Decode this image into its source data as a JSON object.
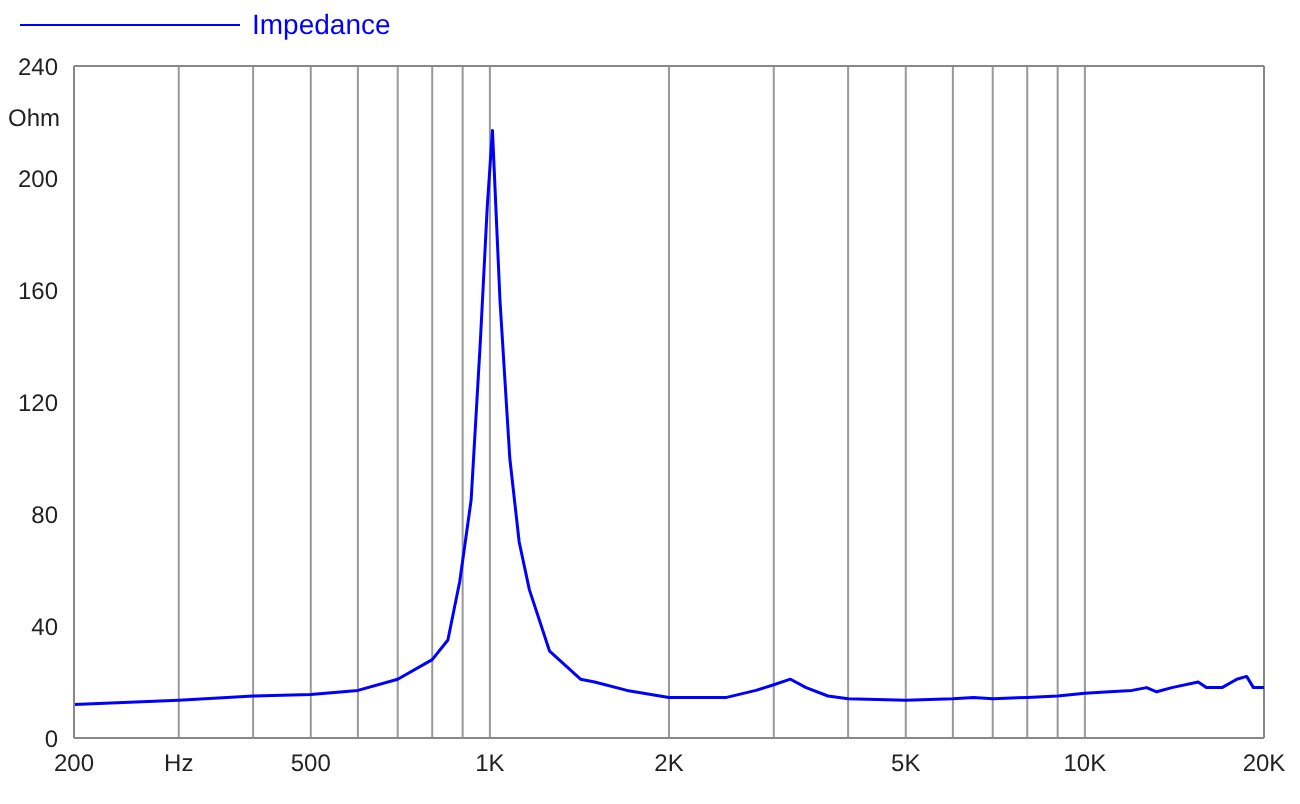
{
  "chart_data": {
    "type": "line",
    "ylabel": "Ohm",
    "legend": "top left",
    "grid": "x",
    "marker": "none",
    "line_style": "solid",
    "log": "x",
    "xlim": [
      200,
      20000
    ],
    "ylim": [
      0,
      240
    ],
    "yticks": [
      0,
      40,
      80,
      120,
      160,
      200,
      240
    ],
    "xticks": [
      200,
      {
        "value": 300,
        "label": "Hz"
      },
      {
        "value": 400,
        "label": null
      },
      500,
      {
        "value": 600,
        "label": null
      },
      {
        "value": 700,
        "label": null
      },
      {
        "value": 800,
        "label": null
      },
      {
        "value": 900,
        "label": null
      },
      {
        "value": 1000,
        "label": "1K"
      },
      {
        "value": 2000,
        "label": "2K"
      },
      {
        "value": 3000,
        "label": null
      },
      {
        "value": 4000,
        "label": null
      },
      {
        "value": 5000,
        "label": "5K"
      },
      {
        "value": 6000,
        "label": null
      },
      {
        "value": 7000,
        "label": null
      },
      {
        "value": 8000,
        "label": null
      },
      {
        "value": 9000,
        "label": null
      },
      {
        "value": 10000,
        "label": "10K"
      },
      {
        "value": 20000,
        "label": "20K"
      }
    ],
    "x": [
      200,
      300,
      400,
      500,
      600,
      700,
      800,
      850,
      890,
      930,
      964,
      990,
      1010,
      1040,
      1080,
      1120,
      1165,
      1260,
      1420,
      1500,
      1700,
      2000,
      2500,
      2800,
      3000,
      3200,
      3400,
      3700,
      4000,
      5000,
      6000,
      6500,
      7000,
      8000,
      9000,
      10000,
      11000,
      12000,
      12700,
      13200,
      14000,
      15500,
      16000,
      17000,
      18000,
      18700,
      19200,
      20000
    ],
    "series": [
      {
        "name": "Impedance",
        "color": "#0000ff",
        "values": [
          12,
          13.5,
          15,
          15.5,
          17,
          21,
          28,
          35,
          56,
          85,
          142,
          190,
          217,
          156,
          100,
          70,
          53,
          31,
          21,
          20,
          17,
          14.5,
          14.5,
          17,
          19,
          21,
          18,
          15,
          14,
          13.5,
          14,
          14.5,
          14,
          14.5,
          15,
          16,
          16.5,
          17,
          18,
          16.5,
          18,
          20,
          18,
          18,
          21,
          22,
          18,
          18
        ]
      }
    ]
  }
}
